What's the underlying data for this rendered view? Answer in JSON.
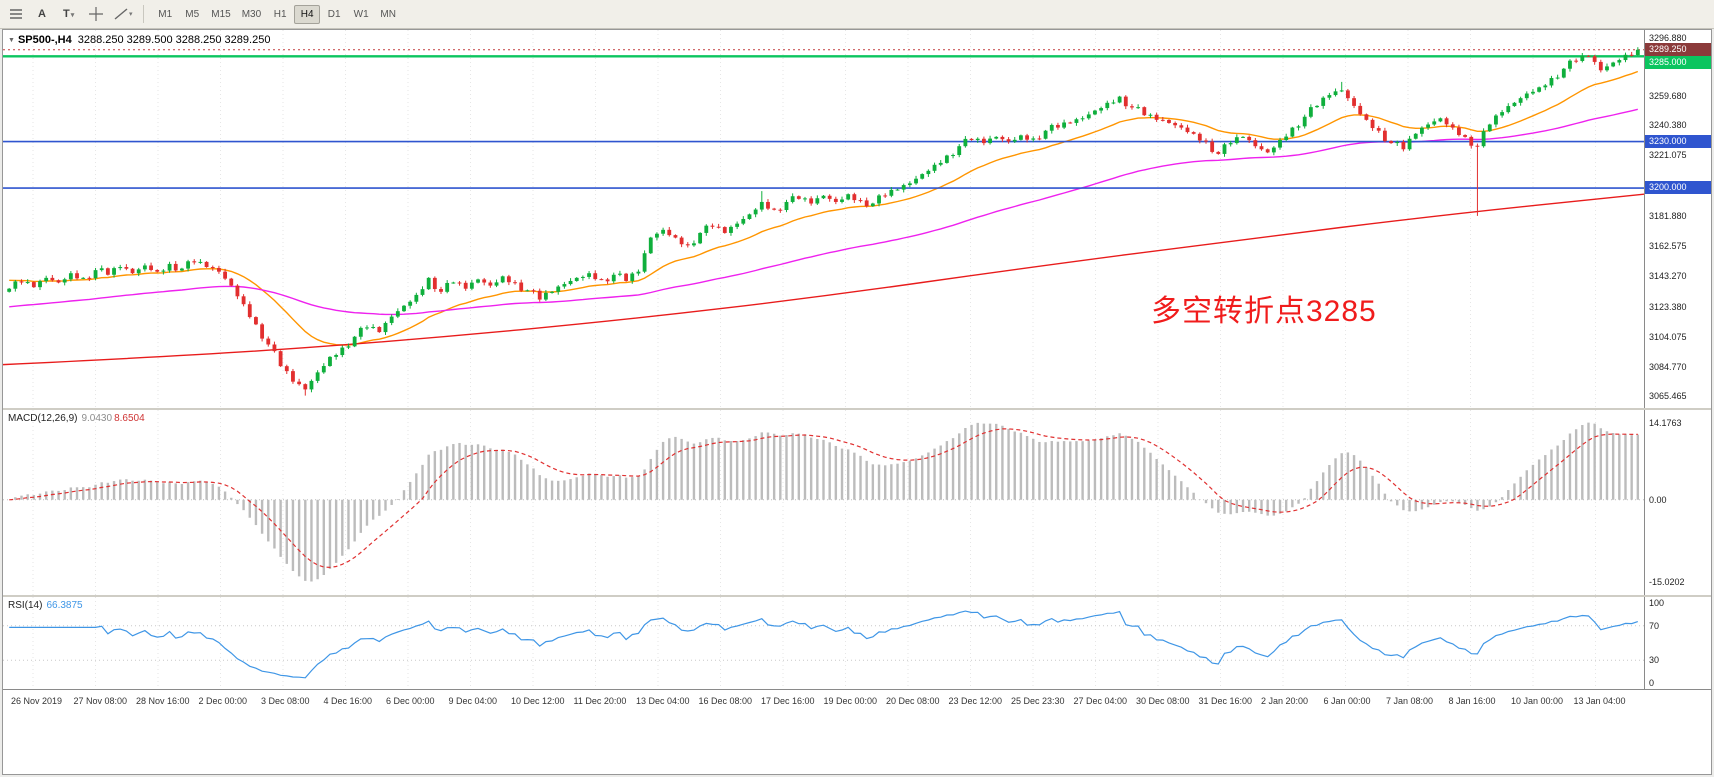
{
  "toolbar": {
    "a_label": "A",
    "t_label": "T",
    "timeframes": [
      "M1",
      "M5",
      "M15",
      "M30",
      "H1",
      "H4",
      "D1",
      "W1",
      "MN"
    ],
    "active_timeframe": "H4"
  },
  "chart": {
    "symbol_header": "SP500-,H4",
    "ohlc": "3288.250 3289.500 3288.250 3289.250",
    "annotation": {
      "text": "多空转折点3285",
      "color": "#f01c1c"
    },
    "axis_labels": [
      "3296.880",
      "3279.575",
      "3259.680",
      "3240.380",
      "3221.075",
      "3181.880",
      "3162.575",
      "3143.270",
      "3123.380",
      "3104.075",
      "3084.770",
      "3065.465"
    ],
    "price_badges": [
      {
        "label": "3289.250",
        "price": 3289.25,
        "color": "#8b3a3a"
      },
      {
        "label": "3285.000",
        "price": 3285.0,
        "color": "#0bc55f"
      },
      {
        "label": "3230.000",
        "price": 3230.0,
        "color": "#2f55cf"
      },
      {
        "label": "3200.000",
        "price": 3200.0,
        "color": "#2f55cf"
      }
    ],
    "levels": [
      {
        "price": 3289.25,
        "color": "#c23b3b",
        "width": 1,
        "dash": "2 3"
      },
      {
        "price": 3285.0,
        "color": "#0bc55f",
        "width": 2.4,
        "dash": ""
      },
      {
        "price": 3230.0,
        "color": "#2f55cf",
        "width": 1.6,
        "dash": ""
      },
      {
        "price": 3200.0,
        "color": "#2f55cf",
        "width": 1.6,
        "dash": ""
      }
    ],
    "time_labels": [
      "26 Nov 2019",
      "27 Nov 08:00",
      "28 Nov 16:00",
      "2 Dec 00:00",
      "3 Dec 08:00",
      "4 Dec 16:00",
      "6 Dec 00:00",
      "9 Dec 04:00",
      "10 Dec 12:00",
      "11 Dec 20:00",
      "13 Dec 04:00",
      "16 Dec 08:00",
      "17 Dec 16:00",
      "19 Dec 00:00",
      "20 Dec 08:00",
      "23 Dec 12:00",
      "25 Dec 23:30",
      "27 Dec 04:00",
      "30 Dec 08:00",
      "31 Dec 16:00",
      "2 Jan 20:00",
      "6 Jan 00:00",
      "7 Jan 08:00",
      "8 Jan 16:00",
      "10 Jan 00:00",
      "13 Jan 04:00"
    ]
  },
  "chart_data": {
    "type": "candlestick",
    "symbol": "SP500-",
    "timeframe": "H4",
    "title": "SP500-,H4 3288.250 3289.500 3288.250 3289.250",
    "price_range": [
      3058,
      3302
    ],
    "closes": [
      3135,
      3139,
      3136,
      3142,
      3139,
      3145,
      3142,
      3147,
      3144,
      3149,
      3145,
      3150,
      3146,
      3151,
      3148,
      3152,
      3149,
      3146,
      3137,
      3125,
      3112,
      3099,
      3085,
      3075,
      3070,
      3081,
      3091,
      3097,
      3104,
      3110,
      3107,
      3117,
      3124,
      3131,
      3142,
      3133,
      3139,
      3135,
      3141,
      3137,
      3143,
      3139,
      3134,
      3128,
      3133,
      3138,
      3142,
      3145,
      3141,
      3144,
      3140,
      3146,
      3168,
      3173,
      3168,
      3163,
      3171,
      3175,
      3171,
      3177,
      3183,
      3191,
      3186,
      3191,
      3193,
      3190,
      3195,
      3191,
      3196,
      3192,
      3190,
      3195,
      3199,
      3203,
      3209,
      3215,
      3221,
      3227,
      3231,
      3229,
      3233,
      3230,
      3234,
      3232,
      3237,
      3239,
      3242,
      3245,
      3250,
      3255,
      3259,
      3252,
      3247,
      3244,
      3242,
      3239,
      3235,
      3230,
      3222,
      3229,
      3233,
      3227,
      3223,
      3231,
      3239,
      3246,
      3253,
      3260,
      3263,
      3253,
      3244,
      3237,
      3229,
      3225,
      3235,
      3241,
      3245,
      3239,
      3233,
      3227,
      3241,
      3249,
      3255,
      3261,
      3265,
      3271,
      3277,
      3282,
      3285,
      3276,
      3281,
      3286,
      3289.25
    ],
    "spikes": [
      {
        "i": 24,
        "low": 3066
      },
      {
        "i": 61,
        "high": 3198
      },
      {
        "i": 108,
        "high": 3268.5
      },
      {
        "i": 119,
        "low": 3182
      },
      {
        "i": 132,
        "high": 3290.9
      }
    ],
    "up_color": "#0faf3c",
    "down_color": "#e22f2f",
    "ma_lines": [
      {
        "name": "ma-fast",
        "type": "ema",
        "period": 20,
        "seed": 3141,
        "color": "#ff9500"
      },
      {
        "name": "ma-medium",
        "type": "ema",
        "period": 80,
        "seed": 3123,
        "color": "#ee22ee"
      },
      {
        "name": "ma-slow",
        "type": "anchors",
        "color": "#e81c1c",
        "points": [
          [
            0,
            3086
          ],
          [
            0.12,
            3092
          ],
          [
            0.25,
            3102
          ],
          [
            0.38,
            3115
          ],
          [
            0.5,
            3130
          ],
          [
            0.62,
            3148
          ],
          [
            0.75,
            3166
          ],
          [
            0.88,
            3183
          ],
          [
            1,
            3196
          ]
        ]
      }
    ]
  },
  "macd": {
    "label": "MACD(12,26,9)",
    "value_main": "9.0430",
    "value_signal": "8.6504",
    "axis_labels": [
      "14.1763",
      "0.00",
      "-15.0202"
    ],
    "axis_values": [
      14.1763,
      0,
      -15.0202
    ],
    "hist_color": "#bcbcbc",
    "signal_color": "#e03131"
  },
  "rsi": {
    "label": "RSI(14)",
    "value": "66.3875",
    "period": 14,
    "axis_labels": [
      "100",
      "70",
      "30",
      "0"
    ],
    "axis_values": [
      100,
      70,
      30,
      0
    ],
    "levels": [
      70,
      30
    ],
    "line_color": "#3f96e6"
  }
}
